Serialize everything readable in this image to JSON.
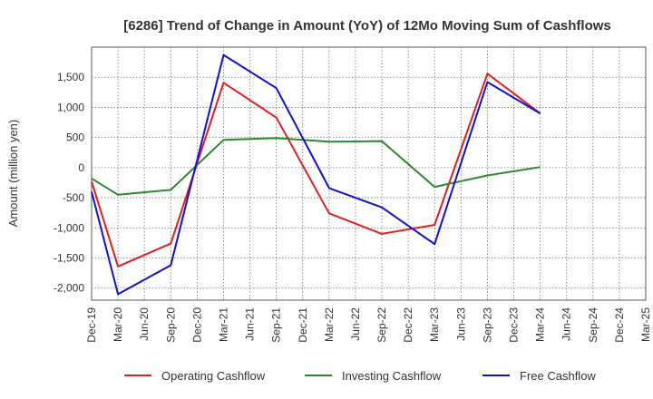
{
  "chart_data": {
    "type": "line",
    "title": "[6286]  Trend of Change in Amount (YoY) of 12Mo Moving Sum of Cashflows",
    "xlabel": "",
    "ylabel": "Amount (million yen)",
    "ylim": [
      -2200,
      2000
    ],
    "yticks": [
      -2000,
      -1500,
      -1000,
      -500,
      0,
      500,
      1000,
      1500
    ],
    "ytick_labels": [
      "-2,000",
      "-1,500",
      "-1,000",
      "-500",
      "0",
      "500",
      "1,000",
      "1,500"
    ],
    "grid": true,
    "legend_position": "bottom",
    "categories": [
      "Dec-19",
      "Mar-20",
      "Jun-20",
      "Sep-20",
      "Dec-20",
      "Mar-21",
      "Jun-21",
      "Sep-21",
      "Dec-21",
      "Mar-22",
      "Jun-22",
      "Sep-22",
      "Dec-22",
      "Mar-23",
      "Jun-23",
      "Sep-23",
      "Dec-23",
      "Mar-24",
      "Jun-24",
      "Sep-24",
      "Dec-24",
      "Mar-25"
    ],
    "series": [
      {
        "name": "Operating Cashflow",
        "color": "#e02020",
        "values": [
          -230,
          -1640,
          null,
          -1260,
          null,
          1410,
          null,
          830,
          null,
          -760,
          null,
          -1100,
          null,
          -950,
          null,
          1560,
          null,
          900,
          null,
          null,
          null,
          null
        ]
      },
      {
        "name": "Investing Cashflow",
        "color": "#2a8a2a",
        "values": [
          -180,
          -450,
          null,
          -370,
          null,
          460,
          null,
          490,
          null,
          430,
          null,
          440,
          null,
          -320,
          null,
          -130,
          null,
          10,
          null,
          null,
          null,
          null
        ]
      },
      {
        "name": "Free Cashflow",
        "color": "#1010d0",
        "values": [
          -400,
          -2100,
          null,
          -1620,
          null,
          1870,
          null,
          1320,
          null,
          -340,
          null,
          -660,
          null,
          -1270,
          null,
          1420,
          null,
          900,
          null,
          null,
          null,
          null
        ]
      }
    ]
  }
}
